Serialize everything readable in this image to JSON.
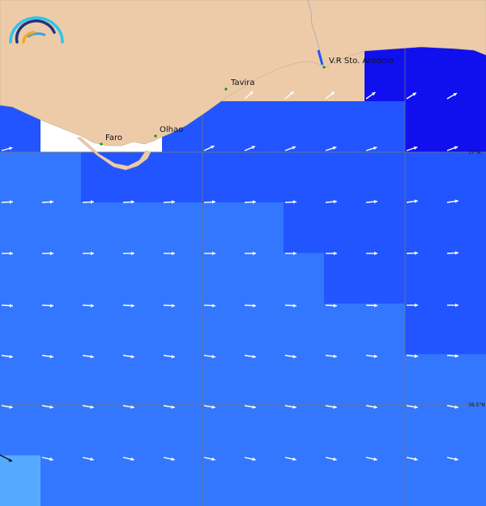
{
  "colors": {
    "land": "#EDCBA8",
    "no_data": "#FFFFFF",
    "level_dark": "#1010EE",
    "level_mid": "#2255FF",
    "level_light": "#3377FF",
    "level_pale": "#55AAFF",
    "arrow": "#FFFFFF",
    "grid": "#777777"
  },
  "logo": {
    "colors": [
      "#2EC4EE",
      "#22337A",
      "#3FA0D8",
      "#F5A623"
    ]
  },
  "cities": [
    {
      "name": "Faro"
    },
    {
      "name": "Olhao"
    },
    {
      "name": "Tavira"
    },
    {
      "name": "V.R Sto. Antonio"
    }
  ],
  "latitude_labels": [
    "37°N",
    "36.5°N"
  ],
  "cell_levels": [
    "LLLLLLLLLDDD",
    "LLLLLLLLLDDD",
    "MWWWMMMMMMDD",
    "TTMMMMMMMMMM",
    "TTTTTTTMMMMM",
    "TTTTTTTTMMMM",
    "TTTTTTTTTTMM",
    "TTTTTTTTTTTT",
    "TTTTTTTTTTTT",
    "PTTTTTTTTTTT"
  ],
  "current_direction_deg": [
    [
      null,
      null,
      null,
      null,
      null,
      null,
      -40,
      -40,
      -38,
      -35,
      -32,
      -30
    ],
    [
      -15,
      null,
      null,
      null,
      null,
      -25,
      -22,
      -20,
      -18,
      -17,
      -18,
      -20
    ],
    [
      -3,
      -3,
      -3,
      -3,
      -3,
      -3,
      -3,
      -3,
      -5,
      -5,
      -8,
      -8
    ],
    [
      0,
      0,
      0,
      0,
      0,
      0,
      0,
      0,
      0,
      0,
      -2,
      -3
    ],
    [
      3,
      3,
      3,
      3,
      3,
      3,
      3,
      3,
      3,
      2,
      0,
      0
    ],
    [
      8,
      8,
      8,
      8,
      8,
      8,
      8,
      8,
      6,
      6,
      5,
      4
    ],
    [
      10,
      10,
      10,
      10,
      10,
      10,
      10,
      10,
      10,
      10,
      10,
      10
    ],
    [
      20,
      12,
      12,
      12,
      12,
      12,
      12,
      12,
      12,
      12,
      12,
      12
    ]
  ]
}
